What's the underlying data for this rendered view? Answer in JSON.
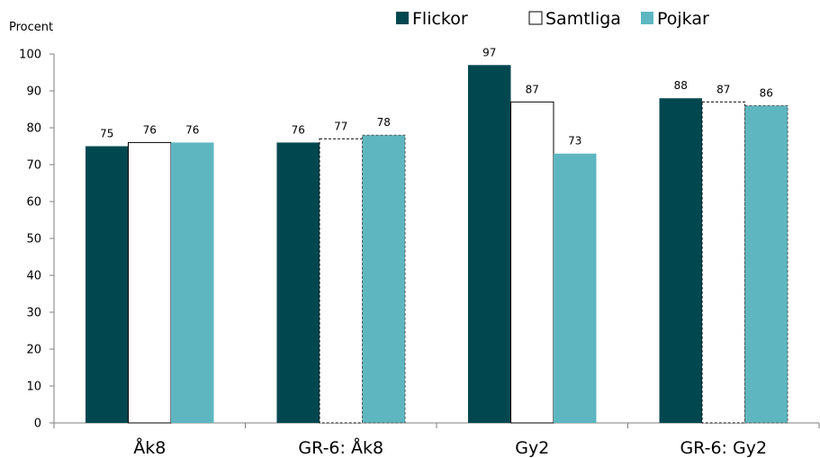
{
  "chart_data": {
    "type": "bar",
    "ylabel": "Procent",
    "ylim": [
      0,
      100
    ],
    "yticks": [
      0,
      10,
      20,
      30,
      40,
      50,
      60,
      70,
      80,
      90,
      100
    ],
    "categories": [
      "Åk8",
      "GR-6: Åk8",
      "Gy2",
      "GR-6: Gy2"
    ],
    "series": [
      {
        "name": "Flickor",
        "values": [
          75,
          76,
          97,
          88
        ],
        "color": "#004750"
      },
      {
        "name": "Samtliga",
        "values": [
          76,
          77,
          87,
          87
        ],
        "color": "#ffffff"
      },
      {
        "name": "Pojkar",
        "values": [
          76,
          78,
          73,
          86
        ],
        "color": "#5eb7c0"
      }
    ],
    "legend_position": "top-right",
    "grid": false
  }
}
